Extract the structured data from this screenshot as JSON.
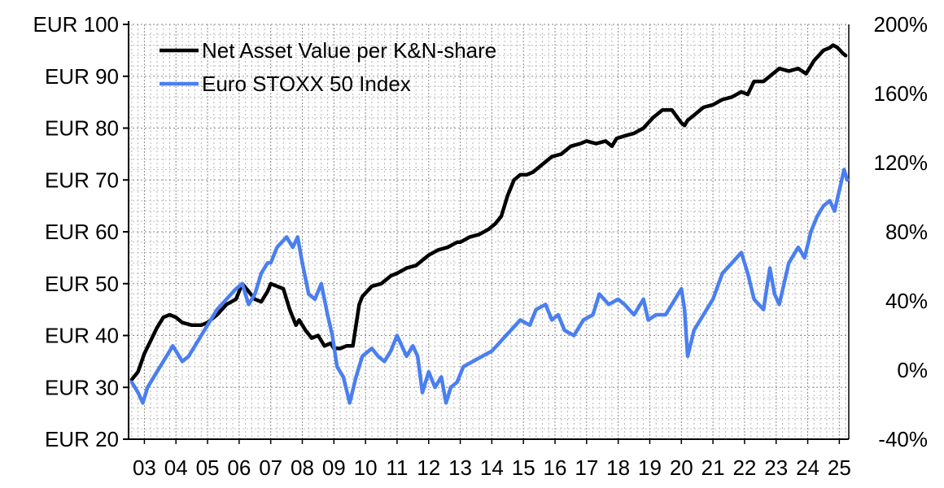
{
  "chart_data": {
    "type": "line",
    "title": "",
    "xlabel": "",
    "ylabel": "",
    "x_ticks": [
      "03",
      "04",
      "05",
      "06",
      "07",
      "08",
      "09",
      "10",
      "11",
      "12",
      "13",
      "14",
      "15",
      "16",
      "17",
      "18",
      "19",
      "20",
      "21",
      "22",
      "23",
      "24",
      "25"
    ],
    "x_range": [
      2002.5,
      2025.3
    ],
    "y_left": {
      "range": [
        20,
        100
      ],
      "ticks": [
        20,
        30,
        40,
        50,
        60,
        70,
        80,
        90,
        100
      ],
      "tick_labels": [
        "EUR 20",
        "EUR 30",
        "EUR 40",
        "EUR 50",
        "EUR 60",
        "EUR 70",
        "EUR 80",
        "EUR 90",
        "EUR 100"
      ]
    },
    "y_right": {
      "range": [
        -40,
        200
      ],
      "ticks": [
        -40,
        0,
        40,
        80,
        120,
        160,
        200
      ],
      "tick_labels": [
        "-40%",
        "0%",
        "40%",
        "80%",
        "120%",
        "160%",
        "200%"
      ]
    },
    "grid": true,
    "legend_position": "top-left",
    "series": [
      {
        "name": "Net Asset Value per K&N-share",
        "color": "#000000",
        "axis": "left",
        "x": [
          2002.6,
          2002.8,
          2003.0,
          2003.2,
          2003.4,
          2003.6,
          2003.8,
          2004.0,
          2004.2,
          2004.5,
          2004.8,
          2005.0,
          2005.3,
          2005.6,
          2005.9,
          2006.1,
          2006.3,
          2006.5,
          2006.7,
          2006.9,
          2007.0,
          2007.2,
          2007.4,
          2007.6,
          2007.8,
          2007.9,
          2008.1,
          2008.3,
          2008.5,
          2008.7,
          2008.9,
          2009.0,
          2009.2,
          2009.4,
          2009.6,
          2009.8,
          2009.9,
          2010.2,
          2010.5,
          2010.8,
          2011.0,
          2011.3,
          2011.6,
          2011.9,
          2012.0,
          2012.3,
          2012.6,
          2012.9,
          2013.0,
          2013.3,
          2013.6,
          2013.9,
          2014.1,
          2014.3,
          2014.5,
          2014.7,
          2014.9,
          2015.1,
          2015.3,
          2015.6,
          2015.9,
          2016.2,
          2016.5,
          2016.8,
          2017.0,
          2017.3,
          2017.6,
          2017.8,
          2017.95,
          2018.2,
          2018.5,
          2018.8,
          2019.1,
          2019.4,
          2019.7,
          2020.0,
          2020.1,
          2020.2,
          2020.4,
          2020.7,
          2021.0,
          2021.3,
          2021.6,
          2021.9,
          2022.1,
          2022.3,
          2022.6,
          2022.9,
          2023.1,
          2023.4,
          2023.7,
          2023.95,
          2024.2,
          2024.5,
          2024.7,
          2024.8,
          2024.95,
          2025.1,
          2025.2
        ],
        "values": [
          31.5,
          33,
          36.5,
          39,
          41.5,
          43.5,
          44,
          43.5,
          42.5,
          42,
          42,
          42.5,
          44,
          46,
          47,
          50,
          48.5,
          47,
          46.5,
          48.5,
          50,
          49.5,
          49,
          45,
          42,
          43,
          41,
          39.5,
          40,
          38,
          38.5,
          37.5,
          37.5,
          38,
          38,
          46,
          47.5,
          49.5,
          50,
          51.5,
          52,
          53,
          53.5,
          55,
          55.5,
          56.5,
          57,
          58,
          58,
          59,
          59.5,
          60.5,
          61.5,
          63,
          67,
          70,
          71,
          71,
          71.5,
          73,
          74.5,
          75,
          76.5,
          77,
          77.5,
          77,
          77.5,
          76.5,
          78,
          78.5,
          79,
          80,
          82,
          83.5,
          83.5,
          81,
          80.5,
          81.5,
          82.5,
          84,
          84.5,
          85.5,
          86,
          87,
          86.5,
          89,
          89,
          90.5,
          91.5,
          91,
          91.5,
          90.5,
          93,
          95,
          95.5,
          96,
          95.5,
          94.5,
          94
        ]
      },
      {
        "name": "Euro STOXX 50 Index",
        "color": "#4a7ff0",
        "axis": "left",
        "x": [
          2002.6,
          2002.8,
          2002.95,
          2003.1,
          2003.4,
          2003.7,
          2003.9,
          2004.0,
          2004.2,
          2004.4,
          2004.6,
          2004.8,
          2005.0,
          2005.3,
          2005.6,
          2005.9,
          2006.1,
          2006.3,
          2006.5,
          2006.7,
          2006.9,
          2007.0,
          2007.2,
          2007.5,
          2007.7,
          2007.85,
          2008.0,
          2008.2,
          2008.4,
          2008.6,
          2008.8,
          2008.95,
          2009.1,
          2009.3,
          2009.5,
          2009.7,
          2009.9,
          2010.2,
          2010.4,
          2010.6,
          2010.8,
          2011.0,
          2011.3,
          2011.5,
          2011.65,
          2011.8,
          2012.0,
          2012.2,
          2012.4,
          2012.55,
          2012.7,
          2012.9,
          2013.1,
          2013.4,
          2013.7,
          2014.0,
          2014.3,
          2014.6,
          2014.9,
          2015.2,
          2015.4,
          2015.7,
          2015.9,
          2016.1,
          2016.3,
          2016.6,
          2016.9,
          2017.2,
          2017.4,
          2017.7,
          2018.0,
          2018.2,
          2018.5,
          2018.8,
          2018.95,
          2019.2,
          2019.5,
          2019.8,
          2020.0,
          2020.1,
          2020.2,
          2020.4,
          2020.7,
          2021.0,
          2021.3,
          2021.6,
          2021.9,
          2022.1,
          2022.3,
          2022.6,
          2022.8,
          2022.95,
          2023.1,
          2023.4,
          2023.7,
          2023.9,
          2024.1,
          2024.3,
          2024.5,
          2024.7,
          2024.85,
          2025.0,
          2025.15,
          2025.25
        ],
        "values": [
          31,
          29,
          27,
          30,
          33,
          36,
          38,
          37,
          35,
          36,
          38,
          40,
          42,
          45,
          47,
          49,
          50,
          46,
          48,
          52,
          54,
          54,
          57,
          59,
          57,
          59,
          54,
          48,
          47,
          50,
          44,
          40,
          34,
          32,
          27,
          32,
          36,
          37.5,
          36,
          35,
          37,
          40,
          36,
          38,
          36,
          29,
          33,
          30,
          32,
          27,
          30,
          31,
          34,
          35,
          36,
          37,
          39,
          41,
          43,
          42,
          45,
          46,
          43,
          44,
          41,
          40,
          43,
          44,
          48,
          46,
          47,
          46,
          44,
          47,
          43,
          44,
          44,
          47,
          49,
          45,
          36,
          41,
          44,
          47,
          52,
          54,
          56,
          52,
          47,
          45,
          53,
          48,
          46,
          54,
          57,
          55,
          60,
          63,
          65,
          66,
          64,
          68,
          72,
          70
        ]
      }
    ]
  }
}
